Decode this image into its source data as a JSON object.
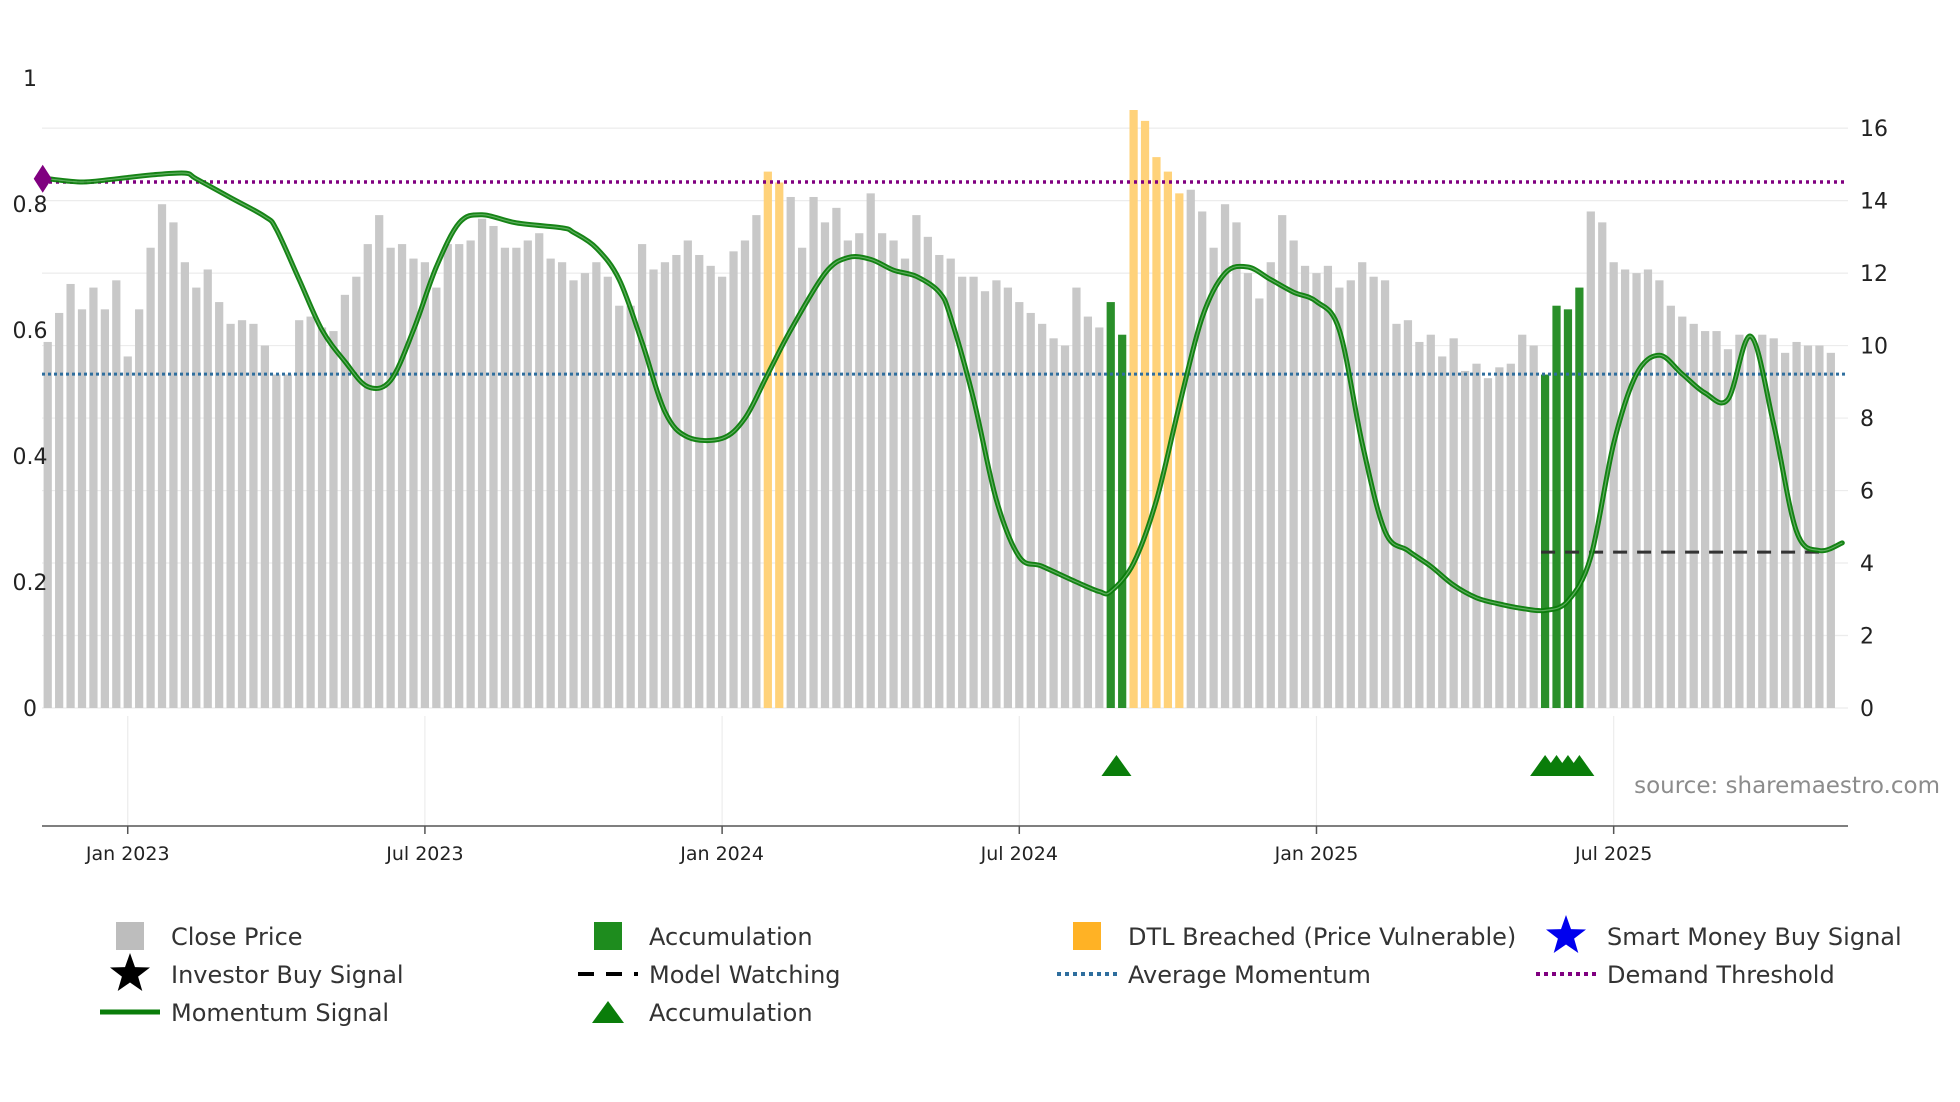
{
  "chart_data": {
    "type": "bar",
    "source": "source: sharemaestro.com",
    "left_axis": {
      "ticks": [
        "0",
        "0.2",
        "0.4",
        "0.6",
        "0.8",
        "1"
      ],
      "ylim": [
        0,
        1
      ]
    },
    "right_axis": {
      "ticks": [
        "0",
        "2",
        "4",
        "6",
        "8",
        "10",
        "12",
        "14",
        "16"
      ],
      "ylim": [
        0,
        16.5
      ]
    },
    "x_axis": {
      "ticks": [
        "Jan 2023",
        "Jul 2023",
        "Jan 2024",
        "Jul 2024",
        "Jan 2025",
        "Jul 2025"
      ],
      "tick_weeks": [
        7,
        33,
        59,
        85,
        111,
        137
      ]
    },
    "close_prices": [
      10.1,
      10.9,
      11.7,
      11.0,
      11.6,
      11.0,
      11.8,
      9.7,
      11.0,
      12.7,
      13.9,
      13.4,
      12.3,
      11.6,
      12.1,
      11.2,
      10.6,
      10.7,
      10.6,
      10.0,
      9.2,
      9.2,
      10.7,
      10.8,
      10.5,
      10.4,
      11.4,
      11.9,
      12.8,
      13.6,
      12.7,
      12.8,
      12.4,
      12.3,
      11.6,
      12.8,
      12.8,
      12.9,
      13.5,
      13.3,
      12.7,
      12.7,
      12.9,
      13.1,
      12.4,
      12.3,
      11.8,
      12.0,
      12.3,
      11.9,
      11.1,
      11.1,
      12.8,
      12.1,
      12.3,
      12.5,
      12.9,
      12.5,
      12.2,
      11.9,
      12.6,
      12.9,
      13.6,
      14.8,
      14.5,
      14.1,
      12.7,
      14.1,
      13.4,
      13.8,
      12.9,
      13.1,
      14.2,
      13.1,
      12.9,
      12.4,
      13.6,
      13.0,
      12.5,
      12.4,
      11.9,
      11.9,
      11.5,
      11.8,
      11.6,
      11.2,
      10.9,
      10.6,
      10.2,
      10.0,
      11.6,
      10.8,
      10.5,
      11.2,
      10.3,
      16.5,
      16.2,
      15.2,
      14.8,
      14.2,
      14.3,
      13.7,
      12.7,
      13.9,
      13.4,
      12.0,
      11.3,
      12.3,
      13.6,
      12.9,
      12.2,
      12.0,
      12.2,
      11.6,
      11.8,
      12.3,
      11.9,
      11.8,
      10.6,
      10.7,
      10.1,
      10.3,
      9.7,
      10.2,
      9.3,
      9.5,
      9.1,
      9.4,
      9.5,
      10.3,
      10.0,
      9.2,
      11.1,
      11.0,
      11.6,
      13.7,
      13.4,
      12.3,
      12.1,
      12.0,
      12.1,
      11.8,
      11.1,
      10.8,
      10.6,
      10.4,
      10.4,
      9.9,
      10.3,
      10.2,
      10.3,
      10.2,
      9.8,
      10.1,
      10.0,
      10.0,
      9.8
    ],
    "accumulation_weeks": [
      93,
      94,
      131,
      132,
      133,
      134
    ],
    "dtl_breached_weeks": [
      63,
      64,
      95,
      96,
      97,
      98,
      99
    ],
    "momentum_points": [
      [
        0,
        0.84
      ],
      [
        3,
        0.835
      ],
      [
        6,
        0.84
      ],
      [
        9,
        0.846
      ],
      [
        12,
        0.849
      ],
      [
        13,
        0.84
      ],
      [
        16,
        0.81
      ],
      [
        19,
        0.78
      ],
      [
        20,
        0.76
      ],
      [
        22,
        0.68
      ],
      [
        24,
        0.6
      ],
      [
        26,
        0.55
      ],
      [
        28,
        0.51
      ],
      [
        30,
        0.52
      ],
      [
        32,
        0.6
      ],
      [
        34,
        0.7
      ],
      [
        36,
        0.77
      ],
      [
        38,
        0.783
      ],
      [
        41,
        0.77
      ],
      [
        45,
        0.762
      ],
      [
        46,
        0.755
      ],
      [
        48,
        0.73
      ],
      [
        50,
        0.68
      ],
      [
        52,
        0.58
      ],
      [
        54,
        0.47
      ],
      [
        56,
        0.43
      ],
      [
        59,
        0.428
      ],
      [
        61,
        0.46
      ],
      [
        63,
        0.53
      ],
      [
        65,
        0.6
      ],
      [
        68,
        0.69
      ],
      [
        70,
        0.715
      ],
      [
        72,
        0.712
      ],
      [
        74,
        0.695
      ],
      [
        76,
        0.685
      ],
      [
        78,
        0.66
      ],
      [
        79,
        0.62
      ],
      [
        81,
        0.49
      ],
      [
        83,
        0.33
      ],
      [
        85,
        0.24
      ],
      [
        87,
        0.225
      ],
      [
        90,
        0.2
      ],
      [
        92,
        0.185
      ],
      [
        93,
        0.185
      ],
      [
        95,
        0.23
      ],
      [
        97,
        0.33
      ],
      [
        99,
        0.48
      ],
      [
        101,
        0.62
      ],
      [
        103,
        0.69
      ],
      [
        105,
        0.7
      ],
      [
        107,
        0.68
      ],
      [
        109,
        0.66
      ],
      [
        111,
        0.645
      ],
      [
        113,
        0.6
      ],
      [
        115,
        0.42
      ],
      [
        117,
        0.28
      ],
      [
        119,
        0.25
      ],
      [
        121,
        0.225
      ],
      [
        123,
        0.195
      ],
      [
        125,
        0.175
      ],
      [
        127,
        0.165
      ],
      [
        129,
        0.158
      ],
      [
        131,
        0.155
      ],
      [
        133,
        0.17
      ],
      [
        135,
        0.24
      ],
      [
        137,
        0.42
      ],
      [
        139,
        0.53
      ],
      [
        141,
        0.56
      ],
      [
        143,
        0.53
      ],
      [
        145,
        0.5
      ],
      [
        147,
        0.49
      ],
      [
        149,
        0.59
      ],
      [
        151,
        0.45
      ],
      [
        153,
        0.28
      ],
      [
        155,
        0.25
      ],
      [
        157,
        0.262
      ]
    ],
    "average_momentum": 0.53,
    "demand_threshold": 0.835,
    "model_watching_level": 4.3,
    "model_watching_from_week": 131,
    "accumulation_marker_weeks": [
      93.5,
      131,
      132,
      133,
      134
    ],
    "weeks_total": 158,
    "legend": [
      {
        "label": "Close Price",
        "symbol": "square",
        "color": "#bdbdbd"
      },
      {
        "label": "Accumulation",
        "symbol": "square",
        "color": "#1e8c1e"
      },
      {
        "label": "DTL Breached (Price Vulnerable)",
        "symbol": "square",
        "color": "#ffb225"
      },
      {
        "label": "Smart Money Buy Signal",
        "symbol": "star",
        "color": "#0000ee"
      },
      {
        "label": "Investor Buy Signal",
        "symbol": "star",
        "color": "#000000"
      },
      {
        "label": "Model Watching",
        "symbol": "dash",
        "color": "#000000"
      },
      {
        "label": "Average Momentum",
        "symbol": "dot",
        "color": "#2e6e9e"
      },
      {
        "label": "Demand Threshold",
        "symbol": "dot",
        "color": "#800080"
      },
      {
        "label": "Momentum Signal",
        "symbol": "line",
        "color": "#0a7d0a"
      },
      {
        "label": "Accumulation",
        "symbol": "triangle",
        "color": "#0a7d0a"
      }
    ]
  }
}
